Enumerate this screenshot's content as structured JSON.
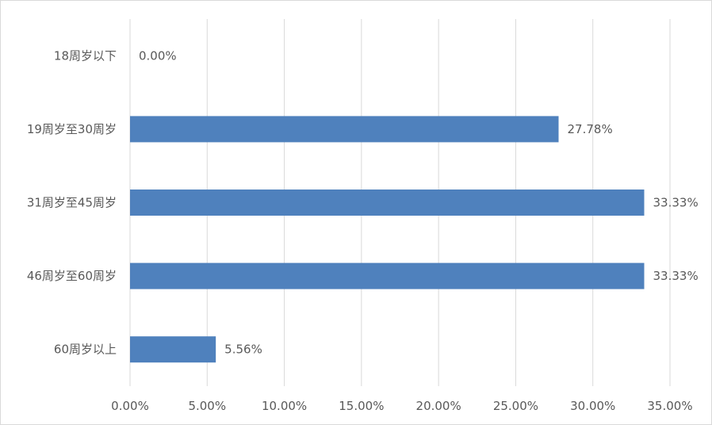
{
  "chart_data": {
    "type": "bar",
    "orientation": "horizontal",
    "categories": [
      "18周岁以下",
      "19周岁至30周岁",
      "31周岁至45周岁",
      "46周岁至60周岁",
      "60周岁以上"
    ],
    "values": [
      0.0,
      27.78,
      33.33,
      33.33,
      5.56
    ],
    "data_labels": [
      "0.00%",
      "27.78%",
      "33.33%",
      "33.33%",
      "5.56%"
    ],
    "x_ticks": [
      "0.00%",
      "5.00%",
      "10.00%",
      "15.00%",
      "20.00%",
      "25.00%",
      "30.00%",
      "35.00%"
    ],
    "x_tick_values": [
      0,
      5,
      10,
      15,
      20,
      25,
      30,
      35
    ],
    "xlim": [
      0,
      35
    ],
    "grid": true,
    "bar_color": "#4f81bd",
    "grid_color": "#d9d9d9",
    "label_color": "#595959"
  }
}
